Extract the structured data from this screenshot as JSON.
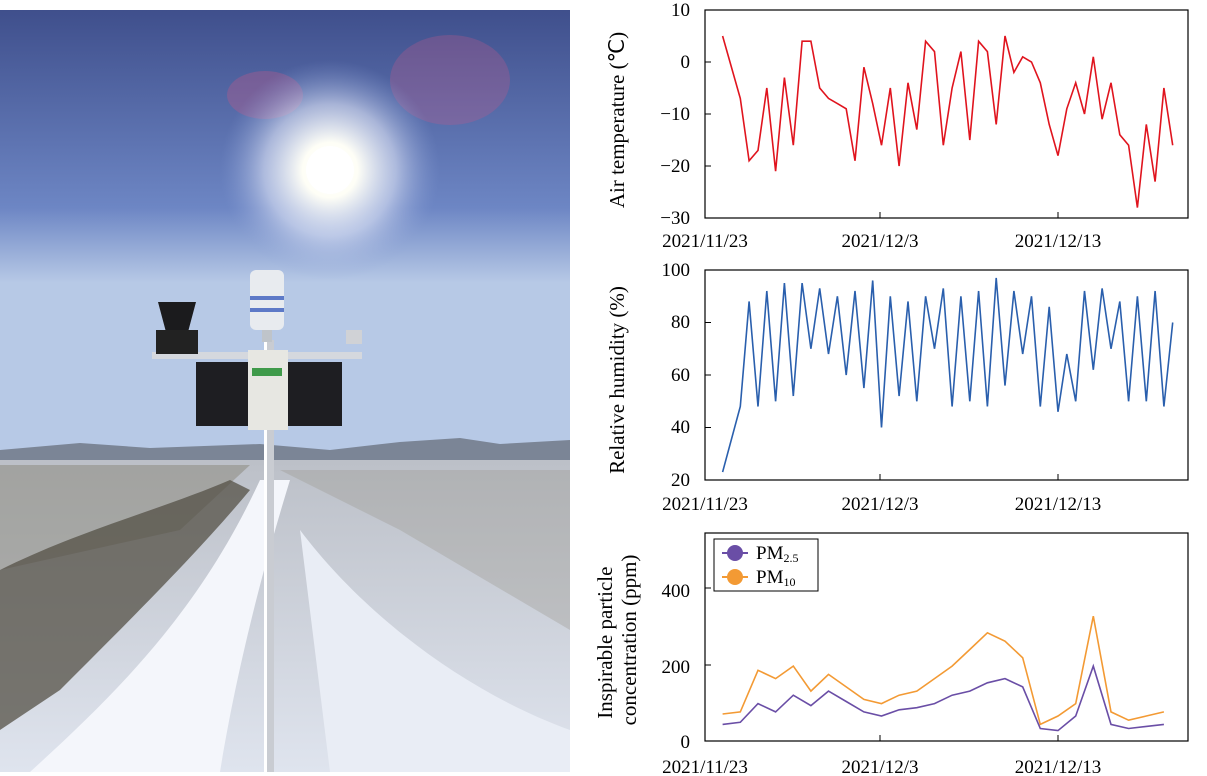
{
  "colors": {
    "temperature": "#e0141e",
    "humidity": "#2a5fad",
    "pm25": "#6a4ea6",
    "pm10": "#f39a34"
  },
  "photo": {
    "description_icon": "weather-station-photo"
  },
  "chart_data": [
    {
      "type": "line",
      "ylabel": "Air temperature (℃)",
      "xlabel": "",
      "ylim": [
        -30,
        10
      ],
      "yticks": [
        "10",
        "0",
        "−10",
        "−20",
        "−30"
      ],
      "xtick_labels": [
        "2021/11/23",
        "2021/12/3",
        "2021/12/13"
      ],
      "x_start": "2021/11/23",
      "series": [
        {
          "x": [
            "2021/11/24",
            "2021/11/25",
            "2021/11/25 12:00",
            "2021/11/26",
            "2021/11/26 12:00",
            "2021/11/27",
            "2021/11/27 12:00",
            "2021/11/28",
            "2021/11/28 12:00",
            "2021/11/29",
            "2021/11/29 12:00",
            "2021/11/30",
            "2021/11/30 12:00",
            "2021/12/1",
            "2021/12/1 12:00",
            "2021/12/2",
            "2021/12/2 12:00",
            "2021/12/3",
            "2021/12/3 12:00",
            "2021/12/4",
            "2021/12/4 12:00",
            "2021/12/5",
            "2021/12/5 12:00",
            "2021/12/6",
            "2021/12/6 12:00",
            "2021/12/7",
            "2021/12/7 12:00",
            "2021/12/8",
            "2021/12/8 12:00",
            "2021/12/9",
            "2021/12/9 12:00",
            "2021/12/10",
            "2021/12/10 12:00",
            "2021/12/11",
            "2021/12/11 12:00",
            "2021/12/12",
            "2021/12/12 12:00",
            "2021/12/13",
            "2021/12/13 12:00",
            "2021/12/14",
            "2021/12/14 12:00",
            "2021/12/15",
            "2021/12/15 12:00",
            "2021/12/16",
            "2021/12/16 12:00",
            "2021/12/17",
            "2021/12/17 12:00",
            "2021/12/18",
            "2021/12/18 12:00",
            "2021/12/19",
            "2021/12/19 12:00"
          ],
          "values": [
            5,
            -7,
            -19,
            -17,
            -5,
            -21,
            -3,
            -16,
            4,
            4,
            -5,
            -7,
            -8,
            -9,
            -19,
            -1,
            -8,
            -16,
            -5,
            -20,
            -4,
            -13,
            4,
            2,
            -16,
            -5,
            2,
            -15,
            4,
            2,
            -12,
            5,
            -2,
            1,
            0,
            -4,
            -12,
            -18,
            -9,
            -4,
            -10,
            1,
            -11,
            -4,
            -14,
            -16,
            -28,
            -12,
            -23,
            -5,
            -16
          ]
        }
      ]
    },
    {
      "type": "line",
      "ylabel": "Relative humidity (%)",
      "xlabel": "",
      "ylim": [
        20,
        100
      ],
      "yticks": [
        "100",
        "80",
        "60",
        "40",
        "20"
      ],
      "xtick_labels": [
        "2021/11/23",
        "2021/12/3",
        "2021/12/13"
      ],
      "series": [
        {
          "x": [
            "2021/11/24",
            "2021/11/25",
            "2021/11/25 12:00",
            "2021/11/26",
            "2021/11/26 12:00",
            "2021/11/27",
            "2021/11/27 12:00",
            "2021/11/28",
            "2021/11/28 12:00",
            "2021/11/29",
            "2021/11/29 12:00",
            "2021/11/30",
            "2021/11/30 12:00",
            "2021/12/1",
            "2021/12/1 12:00",
            "2021/12/2",
            "2021/12/2 12:00",
            "2021/12/3",
            "2021/12/3 12:00",
            "2021/12/4",
            "2021/12/4 12:00",
            "2021/12/5",
            "2021/12/5 12:00",
            "2021/12/6",
            "2021/12/6 12:00",
            "2021/12/7",
            "2021/12/7 12:00",
            "2021/12/8",
            "2021/12/8 12:00",
            "2021/12/9",
            "2021/12/9 12:00",
            "2021/12/10",
            "2021/12/10 12:00",
            "2021/12/11",
            "2021/12/11 12:00",
            "2021/12/12",
            "2021/12/12 12:00",
            "2021/12/13",
            "2021/12/13 12:00",
            "2021/12/14",
            "2021/12/14 12:00",
            "2021/12/15",
            "2021/12/15 12:00",
            "2021/12/16",
            "2021/12/16 12:00",
            "2021/12/17",
            "2021/12/17 12:00",
            "2021/12/18",
            "2021/12/18 12:00",
            "2021/12/19",
            "2021/12/19 12:00"
          ],
          "values": [
            23,
            48,
            88,
            48,
            92,
            50,
            95,
            52,
            95,
            70,
            93,
            68,
            90,
            60,
            92,
            55,
            96,
            40,
            90,
            52,
            88,
            50,
            90,
            70,
            93,
            48,
            90,
            50,
            92,
            48,
            97,
            56,
            92,
            68,
            90,
            48,
            86,
            46,
            68,
            50,
            92,
            62,
            93,
            70,
            88,
            50,
            90,
            50,
            92,
            48,
            80
          ]
        }
      ]
    },
    {
      "type": "line",
      "ylabel": "Inspirable particle concentration (ppm)",
      "xlabel": "",
      "ylim": [
        0,
        500
      ],
      "yticks": [
        "400",
        "200",
        "0"
      ],
      "xtick_labels": [
        "2021/11/23",
        "2021/12/3",
        "2021/12/13"
      ],
      "legend": {
        "position": "top-left"
      },
      "series": [
        {
          "name": "PM",
          "name_sub": "2.5",
          "x": [
            "2021/11/24",
            "2021/11/25",
            "2021/11/26",
            "2021/11/27",
            "2021/11/28",
            "2021/11/29",
            "2021/11/30",
            "2021/12/1",
            "2021/12/2",
            "2021/12/3",
            "2021/12/4",
            "2021/12/5",
            "2021/12/6",
            "2021/12/7",
            "2021/12/8",
            "2021/12/9",
            "2021/12/10",
            "2021/12/11",
            "2021/12/12",
            "2021/12/13",
            "2021/12/14",
            "2021/12/15",
            "2021/12/16",
            "2021/12/17",
            "2021/12/18",
            "2021/12/19"
          ],
          "values": [
            40,
            45,
            90,
            70,
            110,
            85,
            120,
            95,
            70,
            60,
            75,
            80,
            90,
            110,
            120,
            140,
            150,
            130,
            30,
            25,
            60,
            180,
            40,
            30,
            35,
            40
          ]
        },
        {
          "name": "PM",
          "name_sub": "10",
          "x": [
            "2021/11/24",
            "2021/11/25",
            "2021/11/26",
            "2021/11/27",
            "2021/11/28",
            "2021/11/29",
            "2021/11/30",
            "2021/12/1",
            "2021/12/2",
            "2021/12/3",
            "2021/12/4",
            "2021/12/5",
            "2021/12/6",
            "2021/12/7",
            "2021/12/8",
            "2021/12/9",
            "2021/12/10",
            "2021/12/11",
            "2021/12/12",
            "2021/12/13",
            "2021/12/14",
            "2021/12/15",
            "2021/12/16",
            "2021/12/17",
            "2021/12/18",
            "2021/12/19"
          ],
          "values": [
            65,
            70,
            170,
            150,
            180,
            120,
            160,
            130,
            100,
            90,
            110,
            120,
            150,
            180,
            220,
            260,
            240,
            200,
            40,
            60,
            90,
            300,
            70,
            50,
            60,
            70
          ]
        }
      ]
    }
  ]
}
